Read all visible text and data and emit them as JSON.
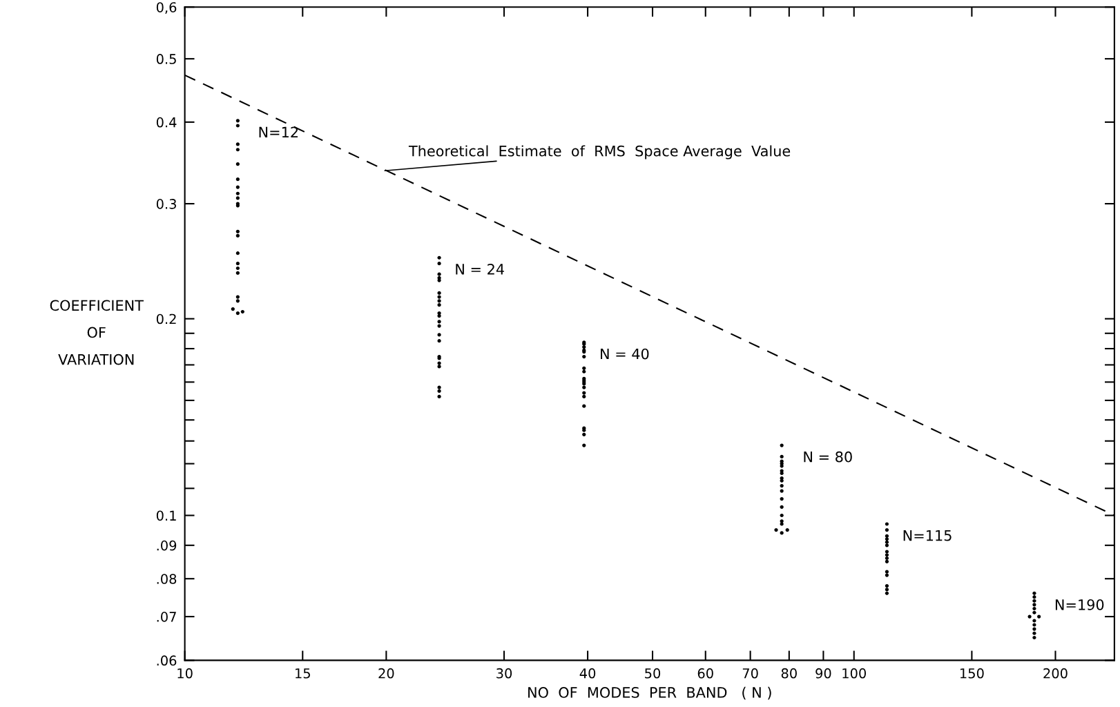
{
  "chart_data": {
    "type": "scatter",
    "xlabel": "NO  OF  MODES  PER  BAND   ( N )",
    "ylabel": "COEFFICIENT\nOF\nVARIATION",
    "log": "xy",
    "xlim": [
      10,
      245
    ],
    "ylim": [
      0.06,
      0.6
    ],
    "xticks": [
      10,
      15,
      20,
      30,
      40,
      50,
      60,
      70,
      80,
      90,
      100,
      150,
      200
    ],
    "yticks": [
      {
        "value": 0.6,
        "label": "0,6"
      },
      0.5,
      0.4,
      0.3,
      0.2,
      {
        "value": 0.19,
        "label": null
      },
      {
        "value": 0.18,
        "label": null
      },
      {
        "value": 0.17,
        "label": null
      },
      {
        "value": 0.16,
        "label": null
      },
      {
        "value": 0.15,
        "label": null
      },
      {
        "value": 0.14,
        "label": null
      },
      {
        "value": 0.13,
        "label": null
      },
      {
        "value": 0.12,
        "label": null
      },
      {
        "value": 0.11,
        "label": null
      },
      0.1,
      {
        "value": 0.09,
        "label": ".09"
      },
      {
        "value": 0.08,
        "label": ".08"
      },
      {
        "value": 0.07,
        "label": ".07"
      },
      {
        "value": 0.06,
        "label": ".06"
      }
    ],
    "grid": false,
    "legend": false,
    "marker": "circle",
    "series": [
      {
        "type": "line",
        "color": "#000000",
        "line_style": "dashed",
        "marker": "none",
        "x": [
          10,
          245
        ],
        "values": [
          0.472,
          0.1
        ]
      },
      {
        "name": "N=12",
        "color": "#000000",
        "x": [
          12,
          12,
          12,
          12,
          12,
          12,
          12,
          12,
          12,
          12,
          12,
          12,
          12,
          12,
          12,
          12,
          12,
          12,
          12,
          11.8,
          12.2,
          12
        ],
        "values": [
          0.402,
          0.395,
          0.37,
          0.363,
          0.345,
          0.327,
          0.318,
          0.311,
          0.306,
          0.3,
          0.298,
          0.272,
          0.268,
          0.252,
          0.243,
          0.239,
          0.235,
          0.216,
          0.213,
          0.207,
          0.205,
          0.204
        ]
      },
      {
        "name": "N = 24",
        "color": "#000000",
        "x": [
          24,
          24,
          24,
          24,
          24,
          24,
          24,
          24,
          24,
          24,
          24,
          24,
          24,
          24,
          24,
          24,
          24,
          24,
          24,
          24,
          24,
          24
        ],
        "values": [
          0.248,
          0.243,
          0.234,
          0.231,
          0.229,
          0.219,
          0.216,
          0.213,
          0.21,
          0.204,
          0.202,
          0.198,
          0.195,
          0.189,
          0.185,
          0.175,
          0.174,
          0.171,
          0.169,
          0.157,
          0.155,
          0.152
        ]
      },
      {
        "name": "N = 40",
        "color": "#000000",
        "x": [
          39.5,
          39.5,
          39.5,
          39.5,
          39.5,
          39.5,
          39.5,
          39.5,
          39.5,
          39.5,
          39.5,
          39.5,
          39.5,
          39.5,
          39.5,
          39.5,
          39.5,
          39.5,
          39.5,
          39.5
        ],
        "values": [
          0.184,
          0.183,
          0.181,
          0.179,
          0.178,
          0.175,
          0.168,
          0.166,
          0.162,
          0.161,
          0.16,
          0.159,
          0.157,
          0.154,
          0.152,
          0.147,
          0.136,
          0.135,
          0.133,
          0.128
        ]
      },
      {
        "name": "N = 80",
        "color": "#000000",
        "x": [
          78,
          78,
          78,
          78,
          78,
          78,
          78,
          78,
          78,
          78,
          78,
          78,
          78,
          78,
          78,
          78,
          76.5,
          79.5,
          78
        ],
        "values": [
          0.128,
          0.123,
          0.121,
          0.12,
          0.119,
          0.117,
          0.116,
          0.114,
          0.113,
          0.111,
          0.109,
          0.106,
          0.103,
          0.1,
          0.098,
          0.097,
          0.095,
          0.095,
          0.094
        ]
      },
      {
        "name": "N=115",
        "color": "#000000",
        "x": [
          112,
          112,
          112,
          112,
          112,
          112,
          112,
          112,
          112,
          112,
          112,
          112,
          112,
          112,
          112
        ],
        "values": [
          0.097,
          0.095,
          0.093,
          0.092,
          0.091,
          0.09,
          0.088,
          0.087,
          0.086,
          0.085,
          0.082,
          0.081,
          0.078,
          0.077,
          0.076
        ]
      },
      {
        "name": "N=190",
        "color": "#000000",
        "x": [
          186,
          186,
          186,
          186,
          186,
          186,
          183,
          189,
          186,
          186,
          186,
          186,
          186
        ],
        "values": [
          0.076,
          0.075,
          0.074,
          0.073,
          0.072,
          0.071,
          0.07,
          0.07,
          0.069,
          0.068,
          0.067,
          0.066,
          0.065
        ]
      }
    ],
    "annotations": [
      {
        "text": "Theoretical  Estimate  of  RMS  Space Average  Value",
        "x": 19.9,
        "y": 0.337
      }
    ]
  }
}
